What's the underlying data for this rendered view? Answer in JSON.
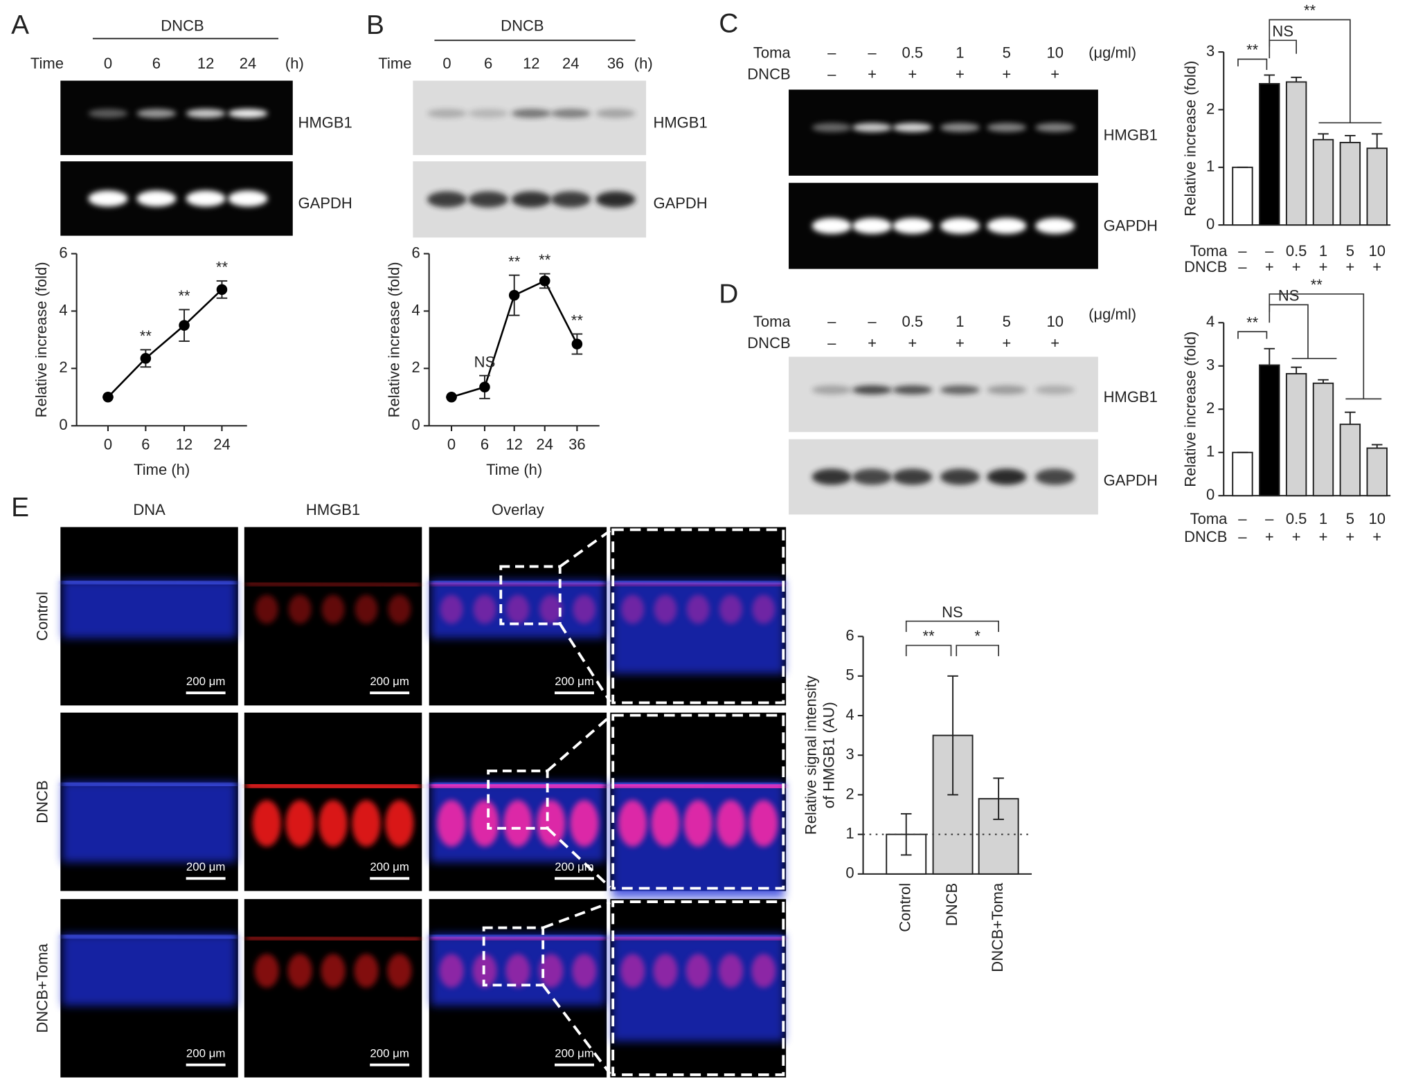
{
  "chart_data": [
    {
      "type": "line",
      "x_label": "Time (h)",
      "y_label": "Relative increase (fold)",
      "categories": [
        "0",
        "6",
        "12",
        "24"
      ],
      "values": [
        1,
        2.35,
        3.5,
        4.75
      ],
      "errors": [
        0,
        0.3,
        0.55,
        0.3
      ],
      "annotations": [
        null,
        "**",
        "**",
        "**"
      ],
      "ylim": [
        0,
        6
      ],
      "yticks": [
        0,
        2,
        4,
        6
      ],
      "color": "#000000"
    },
    {
      "type": "line",
      "x_label": "Time (h)",
      "y_label": "Relative increase (fold)",
      "categories": [
        "0",
        "6",
        "12",
        "24",
        "36"
      ],
      "values": [
        1,
        1.35,
        4.55,
        5.05,
        2.85
      ],
      "errors": [
        0,
        0.4,
        0.7,
        0.25,
        0.35
      ],
      "annotations": [
        null,
        "NS",
        "**",
        "**",
        "**"
      ],
      "ylim": [
        0,
        6
      ],
      "yticks": [
        0,
        2,
        4,
        6
      ],
      "color": "#000000"
    },
    {
      "type": "bar",
      "y_label": "Relative increase (fold)",
      "rows": [
        {
          "name": "Toma",
          "labels": [
            "–",
            "–",
            "0.5",
            "1",
            "5",
            "10"
          ]
        },
        {
          "name": "DNCB",
          "labels": [
            "–",
            "+",
            "+",
            "+",
            "+",
            "+"
          ]
        }
      ],
      "values": [
        1,
        2.45,
        2.48,
        1.48,
        1.43,
        1.33
      ],
      "errors": [
        0,
        0.15,
        0.08,
        0.1,
        0.12,
        0.25
      ],
      "error_direction": "up",
      "colors": [
        "#ffffff",
        "#000000",
        "#d3d3d3",
        "#d3d3d3",
        "#d3d3d3",
        "#d3d3d3"
      ],
      "ylim": [
        0,
        3
      ],
      "yticks": [
        0,
        1,
        2,
        3
      ],
      "brackets": [
        "**",
        "NS",
        "**"
      ]
    },
    {
      "type": "bar",
      "y_label": "Relative increase (fold)",
      "rows": [
        {
          "name": "Toma",
          "labels": [
            "–",
            "–",
            "0.5",
            "1",
            "5",
            "10"
          ]
        },
        {
          "name": "DNCB",
          "labels": [
            "–",
            "+",
            "+",
            "+",
            "+",
            "+"
          ]
        }
      ],
      "values": [
        1,
        3.02,
        2.82,
        2.6,
        1.65,
        1.1
      ],
      "errors": [
        0,
        0.38,
        0.15,
        0.08,
        0.28,
        0.08
      ],
      "error_direction": "up",
      "colors": [
        "#ffffff",
        "#000000",
        "#d3d3d3",
        "#d3d3d3",
        "#d3d3d3",
        "#d3d3d3"
      ],
      "ylim": [
        0,
        4
      ],
      "yticks": [
        0,
        1,
        2,
        3,
        4
      ],
      "brackets": [
        "**",
        "NS",
        "**"
      ]
    },
    {
      "type": "bar",
      "y_label": [
        "Relative signal intensity",
        "of HMGB1 (AU)"
      ],
      "categories": [
        "Control",
        "DNCB",
        "DNCB+Toma"
      ],
      "values": [
        1,
        3.5,
        1.9
      ],
      "errors": [
        0.52,
        1.5,
        0.52
      ],
      "error_direction": "both",
      "colors": [
        "#ffffff",
        "#d3d3d3",
        "#d3d3d3"
      ],
      "ylim": [
        0,
        6
      ],
      "yticks": [
        0,
        1,
        2,
        3,
        4,
        5,
        6
      ],
      "brackets": [
        "NS",
        "**",
        "*"
      ],
      "reference_line": 1
    }
  ],
  "panels": {
    "A": {
      "letter": "A",
      "treatment": "DNCB",
      "time_label": "Time",
      "lanes": [
        "0",
        "6",
        "12",
        "24"
      ],
      "unit": "(h)",
      "blots": [
        "HMGB1",
        "GAPDH"
      ]
    },
    "B": {
      "letter": "B",
      "treatment": "DNCB",
      "time_label": "Time",
      "lanes": [
        "0",
        "6",
        "12",
        "24",
        "36"
      ],
      "unit": "(h)",
      "blots": [
        "HMGB1",
        "GAPDH"
      ]
    },
    "C": {
      "letter": "C",
      "rows": [
        {
          "name": "Toma",
          "labels": [
            "–",
            "–",
            "0.5",
            "1",
            "5",
            "10"
          ]
        },
        {
          "name": "DNCB",
          "labels": [
            "–",
            "+",
            "+",
            "+",
            "+",
            "+"
          ]
        }
      ],
      "unit": "(μg/ml)",
      "blots": [
        "HMGB1",
        "GAPDH"
      ]
    },
    "D": {
      "letter": "D",
      "rows": [
        {
          "name": "Toma",
          "labels": [
            "–",
            "–",
            "0.5",
            "1",
            "5",
            "10"
          ]
        },
        {
          "name": "DNCB",
          "labels": [
            "–",
            "+",
            "+",
            "+",
            "+",
            "+"
          ]
        }
      ],
      "unit": "(μg/ml)",
      "blots": [
        "HMGB1",
        "GAPDH"
      ]
    },
    "E": {
      "letter": "E",
      "columns": [
        "DNA",
        "HMGB1",
        "Overlay"
      ],
      "rows": [
        "Control",
        "DNCB",
        "DNCB+Toma"
      ],
      "scale_bar": "200 μm"
    }
  }
}
